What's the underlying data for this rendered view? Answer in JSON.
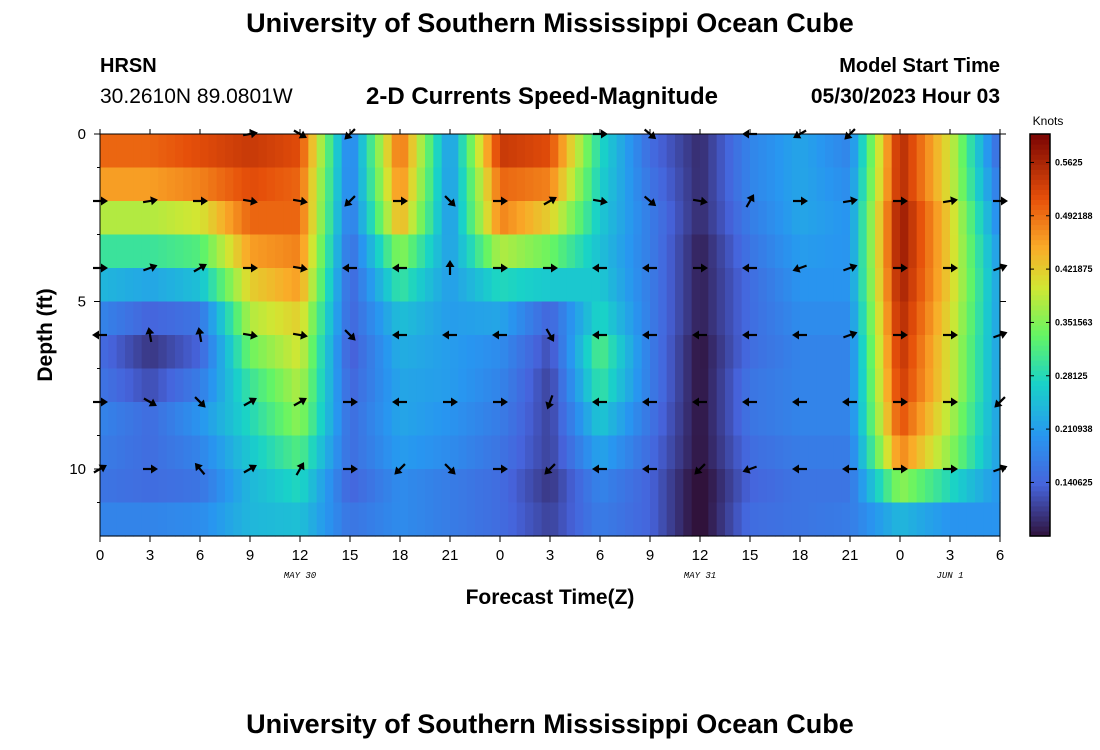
{
  "page": {
    "title": "University of Southern Mississippi Ocean Cube",
    "title_bottom": "University of Southern Mississippi Ocean Cube"
  },
  "header": {
    "station": "HRSN",
    "coords": "30.2610N  89.0801W",
    "chart_title": "2-D Currents Speed-Magnitude",
    "model_label": "Model Start Time",
    "model_time": "05/30/2023 Hour 03"
  },
  "chart_data": {
    "type": "heatmap",
    "title": "2-D Currents Speed-Magnitude",
    "xlabel": "Forecast Time(Z)",
    "ylabel": "Depth (ft)",
    "xlim": [
      0,
      54
    ],
    "ylim": [
      12,
      0
    ],
    "x_ticks": [
      {
        "v": 0,
        "label": "0"
      },
      {
        "v": 3,
        "label": "3"
      },
      {
        "v": 6,
        "label": "6"
      },
      {
        "v": 9,
        "label": "9"
      },
      {
        "v": 12,
        "label": "12"
      },
      {
        "v": 15,
        "label": "15"
      },
      {
        "v": 18,
        "label": "18"
      },
      {
        "v": 21,
        "label": "21"
      },
      {
        "v": 24,
        "label": "0"
      },
      {
        "v": 27,
        "label": "3"
      },
      {
        "v": 30,
        "label": "6"
      },
      {
        "v": 33,
        "label": "9"
      },
      {
        "v": 36,
        "label": "12"
      },
      {
        "v": 39,
        "label": "15"
      },
      {
        "v": 42,
        "label": "18"
      },
      {
        "v": 45,
        "label": "21"
      },
      {
        "v": 48,
        "label": "0"
      },
      {
        "v": 51,
        "label": "3"
      },
      {
        "v": 54,
        "label": "6"
      }
    ],
    "y_ticks": [
      {
        "v": 0,
        "label": "0"
      },
      {
        "v": 5,
        "label": "5"
      },
      {
        "v": 10,
        "label": "10"
      }
    ],
    "date_labels": [
      {
        "x": 12,
        "label": "MAY 30"
      },
      {
        "x": 36,
        "label": "MAY 31"
      },
      {
        "x": 51,
        "label": "JUN 1"
      }
    ],
    "colorbar": {
      "unit": "Knots",
      "min": 0.07,
      "max": 0.6,
      "ticks": [
        {
          "v": 0.140625,
          "label": "0.140625"
        },
        {
          "v": 0.210938,
          "label": "0.210938"
        },
        {
          "v": 0.28125,
          "label": "0.28125"
        },
        {
          "v": 0.351563,
          "label": "0.351563"
        },
        {
          "v": 0.421875,
          "label": "0.421875"
        },
        {
          "v": 0.492188,
          "label": "0.492188"
        },
        {
          "v": 0.5625,
          "label": "0.5625"
        }
      ]
    },
    "speed_knots": {
      "depths": [
        0.5,
        1.5,
        2.5,
        3.5,
        4.5,
        5.5,
        6.5,
        7.5,
        8.5,
        9.5,
        10.5,
        11.5
      ],
      "times": [
        0,
        3,
        6,
        9,
        12,
        15,
        18,
        21,
        24,
        27,
        30,
        33,
        36,
        39,
        42,
        45,
        48,
        51,
        54
      ],
      "values": [
        [
          0.5,
          0.5,
          0.52,
          0.54,
          0.52,
          0.17,
          0.5,
          0.2,
          0.54,
          0.52,
          0.28,
          0.15,
          0.09,
          0.18,
          0.22,
          0.18,
          0.56,
          0.4,
          0.14
        ],
        [
          0.46,
          0.46,
          0.48,
          0.52,
          0.5,
          0.17,
          0.48,
          0.2,
          0.5,
          0.48,
          0.27,
          0.16,
          0.09,
          0.18,
          0.22,
          0.19,
          0.56,
          0.4,
          0.16
        ],
        [
          0.38,
          0.38,
          0.4,
          0.5,
          0.5,
          0.16,
          0.45,
          0.2,
          0.48,
          0.42,
          0.26,
          0.17,
          0.09,
          0.17,
          0.22,
          0.2,
          0.58,
          0.42,
          0.18
        ],
        [
          0.3,
          0.3,
          0.32,
          0.46,
          0.48,
          0.15,
          0.36,
          0.21,
          0.38,
          0.34,
          0.25,
          0.17,
          0.08,
          0.16,
          0.21,
          0.2,
          0.58,
          0.42,
          0.2
        ],
        [
          0.24,
          0.22,
          0.25,
          0.42,
          0.46,
          0.14,
          0.3,
          0.21,
          0.28,
          0.26,
          0.26,
          0.17,
          0.08,
          0.15,
          0.2,
          0.2,
          0.57,
          0.42,
          0.21
        ],
        [
          0.18,
          0.14,
          0.16,
          0.38,
          0.42,
          0.14,
          0.25,
          0.21,
          0.22,
          0.14,
          0.28,
          0.17,
          0.08,
          0.15,
          0.19,
          0.19,
          0.56,
          0.41,
          0.21
        ],
        [
          0.15,
          0.1,
          0.14,
          0.34,
          0.4,
          0.13,
          0.23,
          0.21,
          0.19,
          0.12,
          0.32,
          0.17,
          0.07,
          0.15,
          0.18,
          0.18,
          0.55,
          0.4,
          0.21
        ],
        [
          0.16,
          0.12,
          0.17,
          0.3,
          0.38,
          0.14,
          0.22,
          0.21,
          0.18,
          0.11,
          0.3,
          0.17,
          0.07,
          0.16,
          0.18,
          0.18,
          0.54,
          0.4,
          0.21
        ],
        [
          0.18,
          0.15,
          0.2,
          0.28,
          0.36,
          0.15,
          0.22,
          0.2,
          0.17,
          0.11,
          0.26,
          0.16,
          0.07,
          0.16,
          0.18,
          0.18,
          0.52,
          0.38,
          0.21
        ],
        [
          0.17,
          0.15,
          0.18,
          0.26,
          0.32,
          0.15,
          0.21,
          0.19,
          0.16,
          0.11,
          0.22,
          0.15,
          0.07,
          0.15,
          0.17,
          0.17,
          0.48,
          0.36,
          0.21
        ],
        [
          0.16,
          0.15,
          0.16,
          0.24,
          0.28,
          0.14,
          0.19,
          0.17,
          0.15,
          0.1,
          0.18,
          0.14,
          0.06,
          0.14,
          0.16,
          0.16,
          0.36,
          0.28,
          0.2
        ],
        [
          0.18,
          0.18,
          0.19,
          0.24,
          0.25,
          0.16,
          0.19,
          0.17,
          0.15,
          0.11,
          0.17,
          0.14,
          0.06,
          0.15,
          0.16,
          0.17,
          0.24,
          0.2,
          0.2
        ]
      ]
    },
    "arrows": {
      "depths": [
        0,
        2,
        4,
        6,
        8,
        10
      ],
      "times": [
        0,
        3,
        6,
        9,
        12,
        15,
        18,
        21,
        24,
        27,
        30,
        33,
        36,
        39,
        42,
        45,
        48,
        51,
        54
      ],
      "directions_deg": [
        [
          null,
          null,
          null,
          80,
          120,
          225,
          null,
          null,
          null,
          null,
          90,
          130,
          null,
          270,
          240,
          225,
          null,
          null,
          null
        ],
        [
          90,
          80,
          90,
          100,
          100,
          225,
          90,
          135,
          90,
          60,
          100,
          130,
          100,
          30,
          90,
          80,
          90,
          80,
          90
        ],
        [
          90,
          70,
          60,
          90,
          100,
          270,
          270,
          0,
          90,
          90,
          270,
          270,
          90,
          270,
          250,
          70,
          90,
          90,
          70
        ],
        [
          270,
          350,
          350,
          100,
          100,
          135,
          270,
          270,
          270,
          150,
          270,
          270,
          270,
          270,
          270,
          70,
          90,
          90,
          70
        ],
        [
          90,
          120,
          135,
          60,
          60,
          90,
          270,
          90,
          90,
          200,
          270,
          270,
          270,
          270,
          270,
          270,
          90,
          90,
          225
        ],
        [
          60,
          90,
          320,
          60,
          30,
          90,
          225,
          135,
          90,
          225,
          270,
          270,
          225,
          250,
          270,
          270,
          90,
          90,
          70
        ]
      ]
    }
  }
}
